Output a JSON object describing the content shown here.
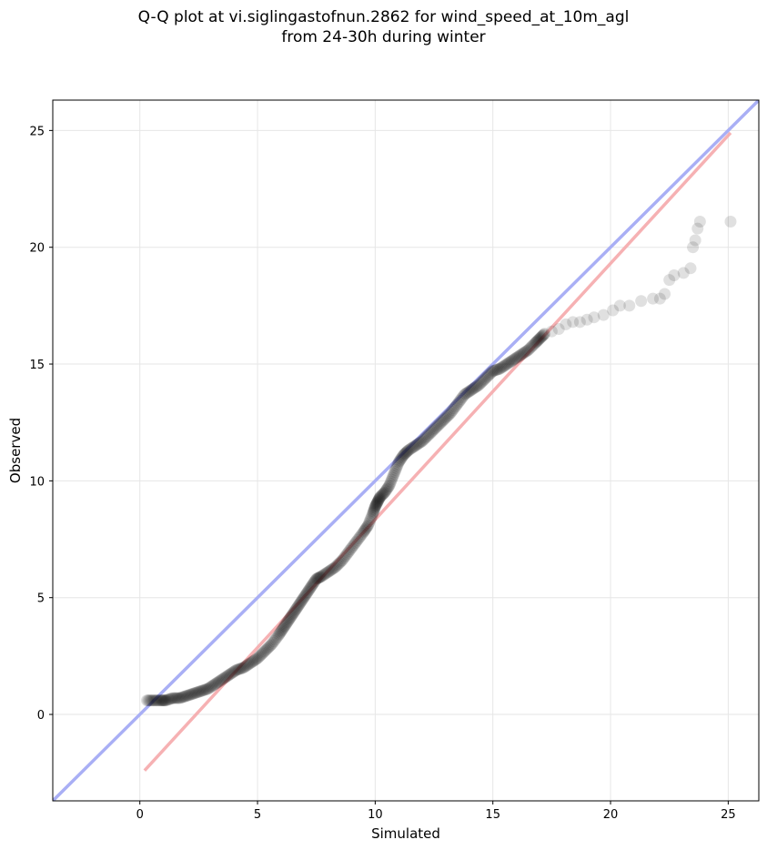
{
  "chart_data": {
    "type": "scatter",
    "title_line1": "Q-Q plot at vi.siglingastofnun.2862 for wind_speed_at_10m_agl",
    "title_line2": "from 24-30h during winter",
    "xlabel": "Simulated",
    "ylabel": "Observed",
    "xlim": [
      -3.7,
      26.3
    ],
    "ylim": [
      -3.7,
      26.3
    ],
    "xticks": [
      0,
      5,
      10,
      15,
      20,
      25
    ],
    "yticks": [
      0,
      5,
      10,
      15,
      20,
      25
    ],
    "grid": true,
    "colors": {
      "points": "#000000",
      "identity_line": "#a9aff5",
      "fit_line": "#f5a9ab",
      "grid": "#e6e6e6"
    },
    "identity_line": {
      "name": "1:1 line",
      "x": [
        -3.7,
        26.3
      ],
      "y": [
        -3.7,
        26.3
      ]
    },
    "fit_line": {
      "name": "linear fit",
      "x": [
        0.2,
        25.1
      ],
      "y": [
        -2.4,
        24.9
      ]
    },
    "points": {
      "x": [
        0.3,
        0.6,
        0.9,
        1.1,
        1.4,
        1.7,
        2.0,
        2.3,
        2.6,
        2.9,
        3.2,
        3.5,
        3.8,
        4.1,
        4.4,
        4.7,
        5.0,
        5.3,
        5.6,
        5.9,
        6.1,
        6.3,
        6.5,
        6.7,
        6.9,
        7.1,
        7.3,
        7.5,
        7.7,
        8.0,
        8.3,
        8.6,
        8.9,
        9.2,
        9.5,
        9.7,
        9.9,
        10.0,
        10.1,
        10.2,
        10.4,
        10.6,
        10.8,
        11.0,
        11.2,
        11.4,
        11.7,
        12.0,
        12.3,
        12.6,
        12.9,
        13.2,
        13.5,
        13.8,
        14.1,
        14.4,
        14.7,
        15.0,
        15.3,
        15.6,
        15.9,
        16.2,
        16.5,
        16.8,
        17.0,
        17.2,
        17.5,
        17.8,
        18.1,
        18.4,
        18.7,
        19.0,
        19.3,
        19.7,
        20.1,
        20.4,
        20.8,
        21.3,
        21.8,
        22.1,
        22.3,
        22.5,
        22.7,
        23.1,
        23.4,
        23.5,
        23.6,
        23.7,
        23.8,
        25.1
      ],
      "y": [
        0.6,
        0.6,
        0.6,
        0.6,
        0.7,
        0.7,
        0.8,
        0.9,
        1.0,
        1.1,
        1.3,
        1.5,
        1.7,
        1.9,
        2.0,
        2.2,
        2.4,
        2.7,
        3.0,
        3.4,
        3.7,
        4.0,
        4.3,
        4.6,
        4.9,
        5.2,
        5.5,
        5.8,
        5.9,
        6.1,
        6.3,
        6.6,
        7.0,
        7.4,
        7.8,
        8.1,
        8.6,
        8.9,
        9.1,
        9.3,
        9.5,
        9.8,
        10.3,
        10.8,
        11.1,
        11.3,
        11.5,
        11.7,
        12.0,
        12.3,
        12.6,
        12.9,
        13.3,
        13.7,
        13.9,
        14.1,
        14.4,
        14.7,
        14.8,
        15.0,
        15.2,
        15.4,
        15.6,
        15.9,
        16.1,
        16.3,
        16.4,
        16.5,
        16.7,
        16.8,
        16.8,
        16.9,
        17.0,
        17.1,
        17.3,
        17.5,
        17.5,
        17.7,
        17.8,
        17.8,
        18.0,
        18.6,
        18.8,
        18.9,
        19.1,
        20.0,
        20.3,
        20.8,
        21.1,
        21.1
      ]
    }
  }
}
